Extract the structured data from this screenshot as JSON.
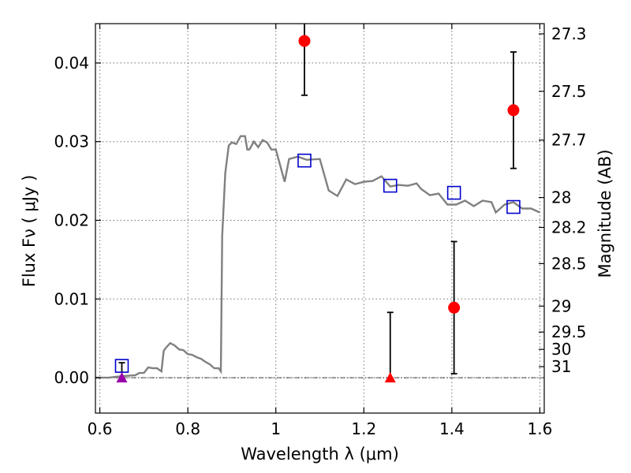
{
  "chart_data": {
    "type": "scatter",
    "xlabel": "Wavelength  λ (μm)",
    "ylabel": "Flux  Fν  ( μJy )",
    "ylabel_right": "Magnitude (AB)",
    "xlim": [
      0.59,
      1.61
    ],
    "ylim": [
      -0.0045,
      0.045
    ],
    "x_ticks": [
      0.6,
      0.8,
      1.0,
      1.2,
      1.4,
      1.6
    ],
    "x_tick_labels": [
      "0.6",
      "0.8",
      "1",
      "1.2",
      "1.4",
      "1.6"
    ],
    "y_ticks": [
      0.0,
      0.01,
      0.02,
      0.03,
      0.04
    ],
    "y_tick_labels": [
      "0.00",
      "0.01",
      "0.02",
      "0.03",
      "0.04"
    ],
    "right_ticks": [
      {
        "label": "27.3",
        "flux": 0.0437
      },
      {
        "label": "27.5",
        "flux": 0.0364
      },
      {
        "label": "27.7",
        "flux": 0.0302
      },
      {
        "label": "28",
        "flux": 0.0229
      },
      {
        "label": "28.2",
        "flux": 0.0191
      },
      {
        "label": "28.5",
        "flux": 0.0145
      },
      {
        "label": "29",
        "flux": 0.0091
      },
      {
        "label": "29.5",
        "flux": 0.0058
      },
      {
        "label": "30",
        "flux": 0.0036
      },
      {
        "label": "31",
        "flux": 0.0014
      }
    ],
    "grid": true,
    "zero_line": true,
    "colors": {
      "model": "#808080",
      "model_photometry": "#0000cc",
      "detection": "#ff0000",
      "upper_limit": "#ff0000",
      "upper_limit_overlap": "#9900aa",
      "errorbar": "#000000"
    },
    "series": [
      {
        "kind": "line",
        "x": [
          0.59,
          0.62,
          0.65,
          0.68,
          0.69,
          0.7,
          0.71,
          0.72,
          0.73,
          0.74,
          0.745,
          0.75,
          0.76,
          0.77,
          0.78,
          0.79,
          0.8,
          0.81,
          0.82,
          0.83,
          0.84,
          0.85,
          0.86,
          0.87,
          0.875,
          0.878,
          0.885,
          0.893,
          0.9,
          0.91,
          0.92,
          0.93,
          0.935,
          0.94,
          0.95,
          0.96,
          0.97,
          0.98,
          0.99,
          1.0,
          1.02,
          1.03,
          1.05,
          1.07,
          1.1,
          1.12,
          1.14,
          1.16,
          1.18,
          1.2,
          1.22,
          1.24,
          1.26,
          1.28,
          1.3,
          1.32,
          1.33,
          1.35,
          1.37,
          1.39,
          1.41,
          1.43,
          1.45,
          1.47,
          1.49,
          1.5,
          1.52,
          1.54,
          1.56,
          1.58,
          1.6
        ],
        "y": [
          0.0,
          0.0,
          0.0002,
          0.0003,
          0.0006,
          0.0006,
          0.0013,
          0.0012,
          0.0012,
          0.0008,
          0.0034,
          0.0038,
          0.0044,
          0.0041,
          0.0036,
          0.0035,
          0.003,
          0.0029,
          0.0026,
          0.0024,
          0.002,
          0.0017,
          0.0012,
          0.0012,
          0.0008,
          0.018,
          0.026,
          0.0295,
          0.0299,
          0.0297,
          0.0307,
          0.0307,
          0.029,
          0.029,
          0.03,
          0.0293,
          0.0302,
          0.0299,
          0.029,
          0.029,
          0.0249,
          0.0278,
          0.0281,
          0.0277,
          0.0278,
          0.0238,
          0.0231,
          0.0252,
          0.0246,
          0.0249,
          0.025,
          0.0256,
          0.0243,
          0.0245,
          0.0244,
          0.0247,
          0.024,
          0.0232,
          0.0234,
          0.022,
          0.022,
          0.0225,
          0.0218,
          0.0225,
          0.0223,
          0.021,
          0.022,
          0.0223,
          0.0215,
          0.0215,
          0.021
        ]
      },
      {
        "kind": "model_photometry",
        "marker": "open-square",
        "x": [
          0.65,
          1.065,
          1.26,
          1.405,
          1.54
        ],
        "y": [
          0.0015,
          0.0276,
          0.0244,
          0.0235,
          0.0217
        ]
      },
      {
        "kind": "detection",
        "marker": "filled-circle",
        "x": [
          1.065,
          1.405,
          1.54
        ],
        "y": [
          0.0428,
          0.0089,
          0.034
        ],
        "err": [
          0.0069,
          0.0084,
          0.0074
        ]
      },
      {
        "kind": "upper_limit",
        "marker": "filled-triangle",
        "x": [
          0.65,
          1.26
        ],
        "y": [
          0.0,
          0.0
        ],
        "err_top": [
          0.0019,
          0.0083
        ]
      }
    ]
  }
}
